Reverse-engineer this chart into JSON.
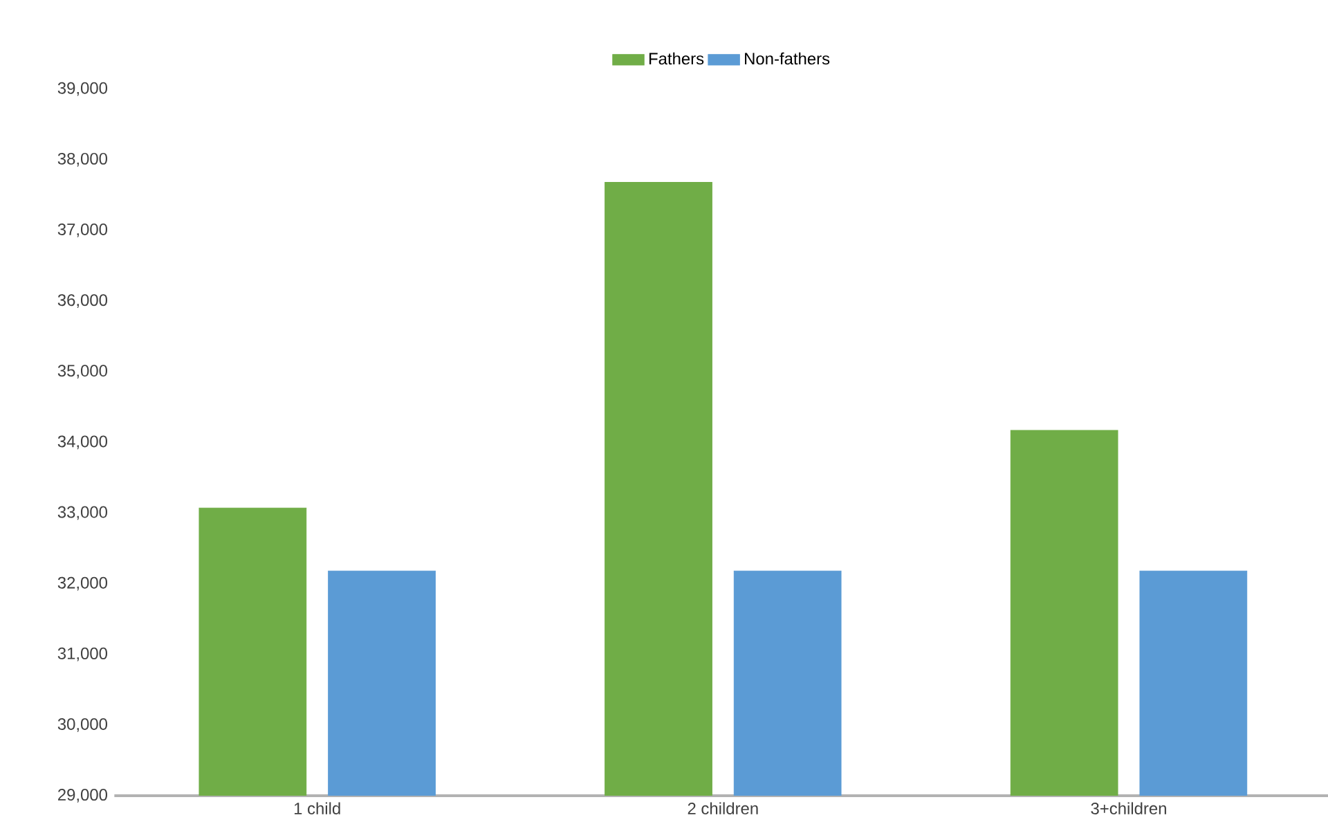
{
  "chart_data": {
    "type": "bar",
    "categories": [
      "1 child",
      "2 children",
      "3+children"
    ],
    "series": [
      {
        "name": "Fathers",
        "color": "#70ad47",
        "values": [
          33070,
          37680,
          34170
        ]
      },
      {
        "name": "Non-fathers",
        "color": "#5b9bd5",
        "values": [
          32180,
          32180,
          32180
        ]
      }
    ],
    "ylim": [
      29000,
      39000
    ],
    "yticks": [
      {
        "value": 29000,
        "label": "29,000"
      },
      {
        "value": 30000,
        "label": "30,000"
      },
      {
        "value": 31000,
        "label": "31,000"
      },
      {
        "value": 32000,
        "label": "32,000"
      },
      {
        "value": 33000,
        "label": "33,000"
      },
      {
        "value": 34000,
        "label": "34,000"
      },
      {
        "value": 35000,
        "label": "35,000"
      },
      {
        "value": 36000,
        "label": "36,000"
      },
      {
        "value": 37000,
        "label": "37,000"
      },
      {
        "value": 38000,
        "label": "38,000"
      },
      {
        "value": 39000,
        "label": "39,000"
      }
    ],
    "grid": false,
    "legend": "top"
  }
}
